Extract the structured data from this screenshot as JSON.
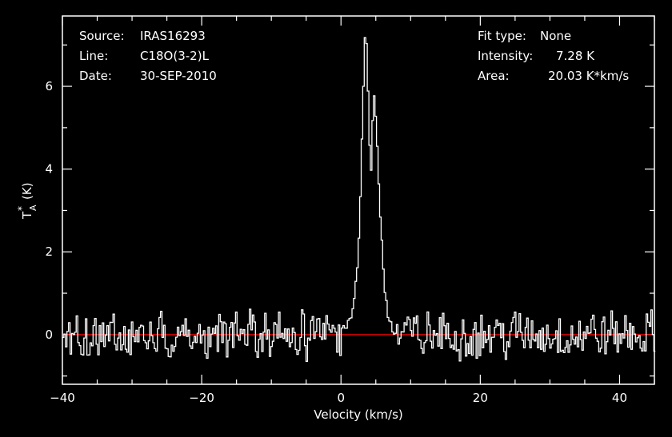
{
  "chart_data": {
    "type": "line",
    "xlabel": "Velocity (km/s)",
    "ylabel_main": "T",
    "ylabel_super": "*",
    "ylabel_sub": "A",
    "ylabel_unit": "(K)",
    "xlim": [
      -40,
      45
    ],
    "ylim": [
      -1.2,
      7.7
    ],
    "x_ticks": [
      -40,
      -20,
      0,
      20,
      40
    ],
    "y_ticks": [
      0,
      2,
      4,
      6
    ],
    "baseline": {
      "y": 0,
      "color": "#ff0000"
    },
    "line_color": "#ffffff",
    "grid": false,
    "info_left": [
      {
        "key": "Source:",
        "value": "IRAS16293"
      },
      {
        "key": "Line:",
        "value": "C18O(3-2)L"
      },
      {
        "key": "Date:",
        "value": "30-SEP-2010"
      }
    ],
    "info_right": [
      {
        "key": "Fit type:",
        "value": "None"
      },
      {
        "key": "Intensity:",
        "value": "7.28 K"
      },
      {
        "key": "Area:",
        "value": "20.03 K*km/s"
      }
    ],
    "peak_points": [
      [
        0.0,
        0.05
      ],
      [
        0.5,
        0.2
      ],
      [
        1.0,
        0.3
      ],
      [
        1.5,
        0.6
      ],
      [
        2.0,
        1.2
      ],
      [
        2.5,
        2.3
      ],
      [
        3.0,
        5.2
      ],
      [
        3.3,
        7.28
      ],
      [
        3.6,
        7.1
      ],
      [
        3.9,
        5.0
      ],
      [
        4.2,
        3.9
      ],
      [
        4.6,
        5.9
      ],
      [
        5.0,
        5.0
      ],
      [
        5.5,
        3.0
      ],
      [
        6.0,
        1.5
      ],
      [
        6.5,
        0.6
      ],
      [
        7.0,
        0.3
      ],
      [
        7.5,
        -0.1
      ],
      [
        8.0,
        0.15
      ]
    ]
  }
}
